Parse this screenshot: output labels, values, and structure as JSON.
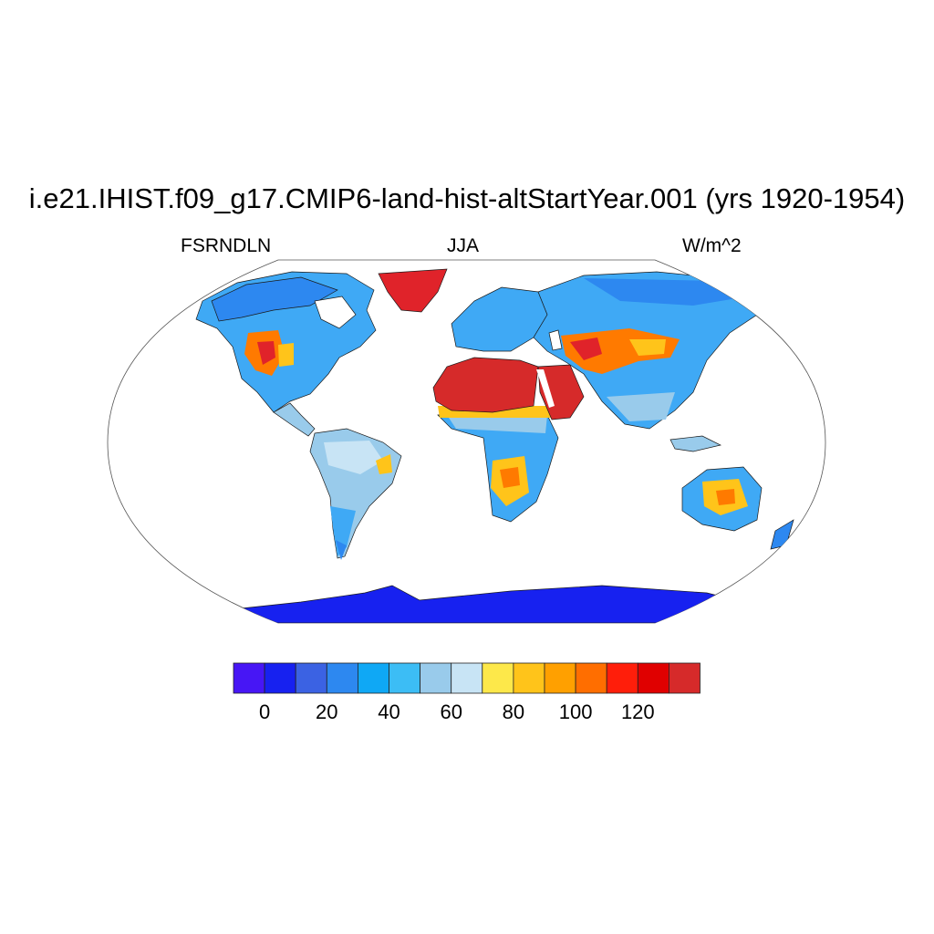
{
  "figure": {
    "title": "i.e21.IHIST.f09_g17.CMIP6-land-hist-altStartYear.001 (yrs 1920-1954)",
    "left_label": "FSRNDLN",
    "center_label": "JJA",
    "right_label": "W/m^2"
  },
  "map": {
    "projection": "Robinson",
    "field": "FSRNDLN",
    "colors": {
      "background": "#ffffff",
      "outline": "#555555",
      "coastline": "#1a1a1a",
      "antarctica": "#1721f0",
      "greenland": "#e0232a",
      "sahara": "#d62a2a",
      "desert_edge": "#ff7a00",
      "semi_arid": "#ffc41a",
      "midlatitude": "#3fa9f5",
      "tropics": "#99cbeb",
      "boreal": "#2d88f0"
    }
  },
  "colorbar": {
    "colors": [
      "#4716f5",
      "#1721f0",
      "#3b62e3",
      "#2d88f0",
      "#0fa8f5",
      "#3cbdf5",
      "#99cbeb",
      "#c8e4f5",
      "#fde84a",
      "#ffc41a",
      "#ffa000",
      "#ff6e00",
      "#ff1e0a",
      "#e00000",
      "#d62a2a"
    ],
    "tick_labels": [
      "0",
      "20",
      "40",
      "60",
      "80",
      "100",
      "120"
    ]
  }
}
